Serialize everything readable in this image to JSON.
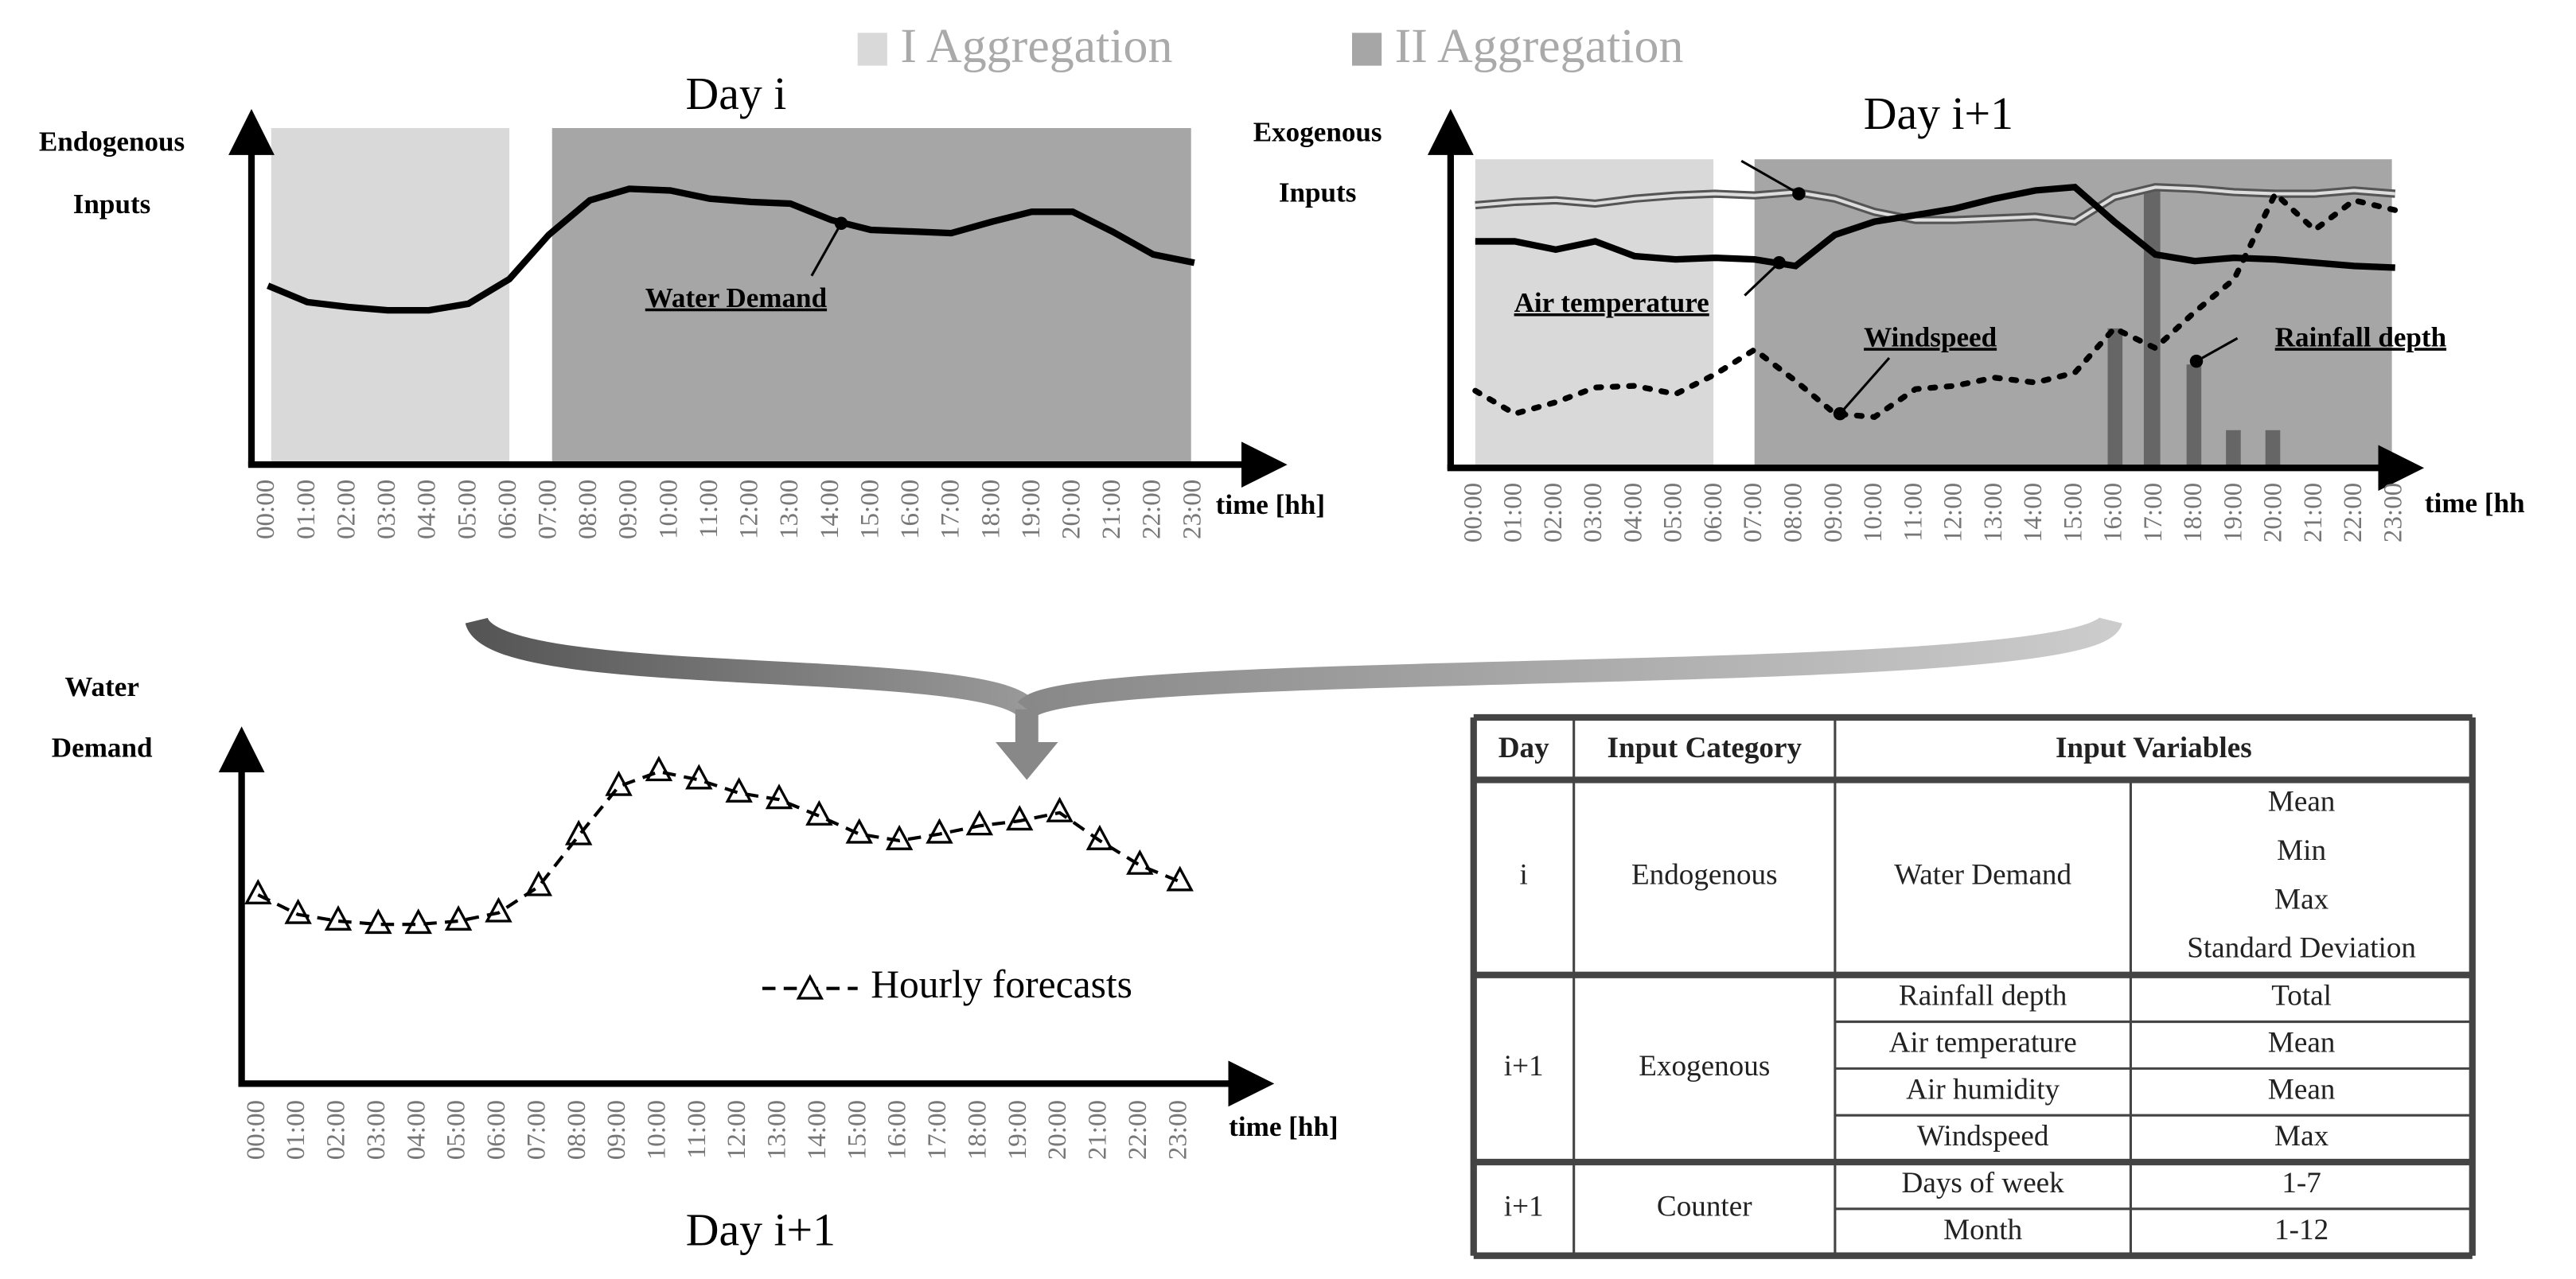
{
  "legend": [
    "I Aggregation",
    "II Aggregation"
  ],
  "panel_a": {
    "title": "Day i",
    "y_label": [
      "Endogenous",
      "Inputs"
    ],
    "x_label": "time [hh]",
    "annotations": [
      "Water Demand"
    ]
  },
  "panel_b": {
    "title": "Day i+1",
    "y_label": [
      "Exogenous",
      "Inputs"
    ],
    "x_label": "time [hh",
    "annotations": [
      "Air temperature",
      "Windspeed",
      "Rainfall depth"
    ]
  },
  "panel_c": {
    "title": "Day i+1",
    "y_label": [
      "Water",
      "Demand"
    ],
    "x_label": "time [hh]",
    "legend": "Hourly forecasts"
  },
  "hours": [
    "00:00",
    "01:00",
    "02:00",
    "03:00",
    "04:00",
    "05:00",
    "06:00",
    "07:00",
    "08:00",
    "09:00",
    "10:00",
    "11:00",
    "12:00",
    "13:00",
    "14:00",
    "15:00",
    "16:00",
    "17:00",
    "18:00",
    "19:00",
    "20:00",
    "21:00",
    "22:00",
    "23:00"
  ],
  "table": {
    "header": [
      "Day",
      "Input Category",
      "Input Variables"
    ],
    "groups": [
      {
        "day": "i",
        "category": "Endogenous",
        "variables": [
          {
            "name": "Water Demand",
            "stats": [
              "Mean",
              "Min",
              "Max",
              "Standard Deviation"
            ]
          }
        ]
      },
      {
        "day": "i+1",
        "category": "Exogenous",
        "variables": [
          {
            "name": "Rainfall depth",
            "stats": [
              "Total"
            ]
          },
          {
            "name": "Air temperature",
            "stats": [
              "Mean"
            ]
          },
          {
            "name": "Air humidity",
            "stats": [
              "Mean"
            ]
          },
          {
            "name": "Windspeed",
            "stats": [
              "Max"
            ]
          }
        ]
      },
      {
        "day": "i+1",
        "category": "Counter",
        "variables": [
          {
            "name": "Days of week",
            "stats": [
              "1-7"
            ]
          },
          {
            "name": "Month",
            "stats": [
              "1-12"
            ]
          }
        ]
      }
    ]
  }
}
